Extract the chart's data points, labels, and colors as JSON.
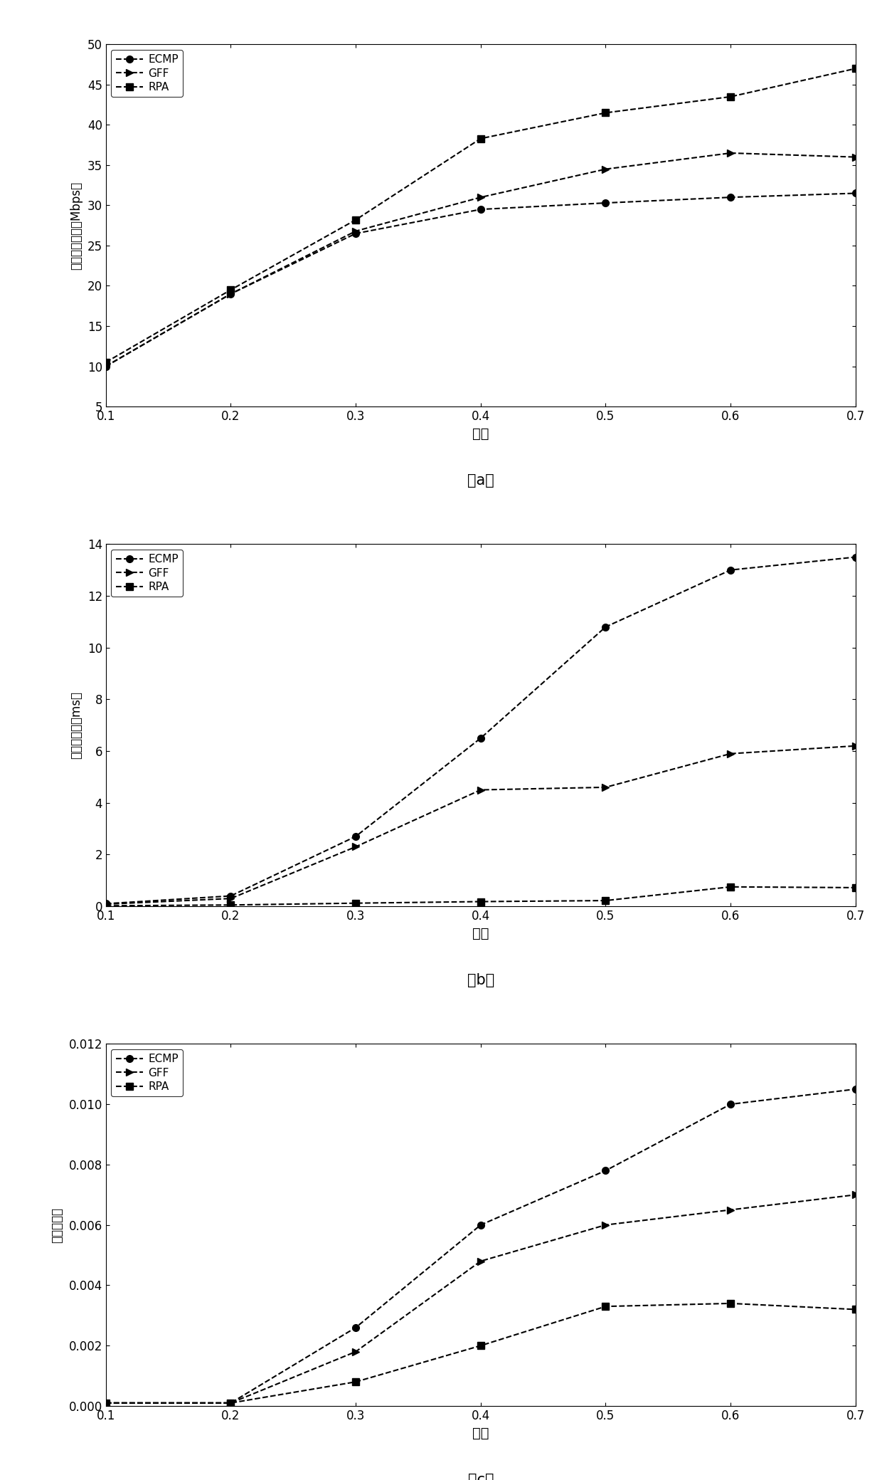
{
  "x": [
    0.1,
    0.2,
    0.3,
    0.4,
    0.5,
    0.6,
    0.7
  ],
  "chart_a": {
    "title": "（a）",
    "ylabel": "平均吞吐量／（Mbps）",
    "xlabel": "负载",
    "ylim": [
      5,
      50
    ],
    "yticks": [
      5,
      10,
      15,
      20,
      25,
      30,
      35,
      40,
      45,
      50
    ],
    "ECMP": [
      10.0,
      19.0,
      26.5,
      29.5,
      30.3,
      31.0,
      31.5
    ],
    "GFF": [
      10.0,
      19.0,
      26.8,
      31.0,
      34.5,
      36.5,
      36.0
    ],
    "RPA": [
      10.5,
      19.5,
      28.2,
      38.3,
      41.5,
      43.5,
      47.0
    ]
  },
  "chart_b": {
    "title": "（b）",
    "ylabel": "平均时延／（ms）",
    "xlabel": "负载",
    "ylim": [
      0,
      14
    ],
    "yticks": [
      0,
      2,
      4,
      6,
      8,
      10,
      12,
      14
    ],
    "ECMP": [
      0.1,
      0.4,
      2.7,
      6.5,
      10.8,
      13.0,
      13.5
    ],
    "GFF": [
      0.08,
      0.3,
      2.3,
      4.5,
      4.6,
      5.9,
      6.2
    ],
    "RPA": [
      0.02,
      0.05,
      0.12,
      0.18,
      0.22,
      0.75,
      0.72
    ]
  },
  "chart_c": {
    "title": "（c）",
    "ylabel": "平均丢包率",
    "xlabel": "负载",
    "ylim": [
      0,
      0.012
    ],
    "yticks": [
      0.0,
      0.002,
      0.004,
      0.006,
      0.008,
      0.01,
      0.012
    ],
    "ECMP": [
      0.0001,
      0.0001,
      0.0026,
      0.006,
      0.0078,
      0.01,
      0.0105
    ],
    "GFF": [
      0.0001,
      0.0001,
      0.0018,
      0.0048,
      0.006,
      0.0065,
      0.007
    ],
    "RPA": [
      0.0001,
      0.0001,
      0.0008,
      0.002,
      0.0033,
      0.0034,
      0.0032
    ]
  },
  "line_color": "#000000",
  "marker_ECMP": "o",
  "marker_GFF": ">",
  "marker_RPA": "s",
  "linestyle": "--",
  "markersize": 7,
  "linewidth": 1.5,
  "legend_labels": [
    "ECMP",
    "GFF",
    "RPA"
  ]
}
